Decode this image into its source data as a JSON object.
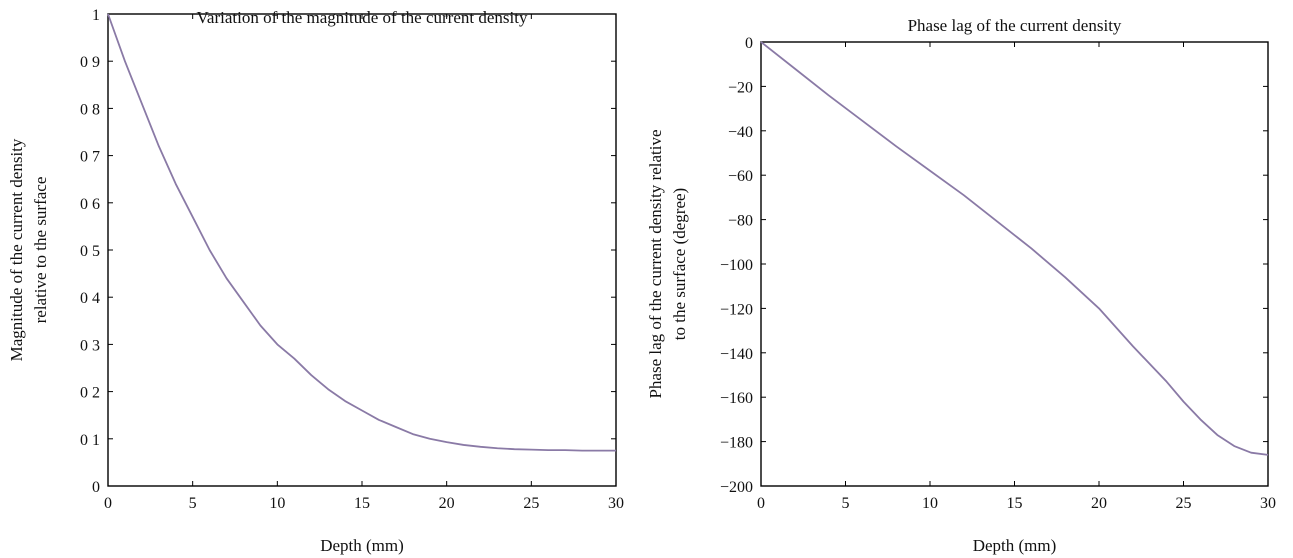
{
  "chart_data": [
    {
      "type": "line",
      "title": "Variation of the magnitude of the current density",
      "xlabel": "Depth (mm)",
      "ylabel": [
        "Magnitude of the current density",
        "relative to the surface"
      ],
      "xlim": [
        0,
        30
      ],
      "ylim": [
        0,
        1
      ],
      "xticks": [
        "0",
        "5",
        "10",
        "15",
        "20",
        "25",
        "30"
      ],
      "yticks": [
        "0",
        "0 1",
        "0 2",
        "0 3",
        "0 4",
        "0 5",
        "0 6",
        "0 7",
        "0 8",
        "0 9",
        "1"
      ],
      "grid": false,
      "line_color": "#8a7aa6",
      "series": [
        {
          "x": [
            0,
            1,
            2,
            3,
            4,
            5,
            6,
            7,
            8,
            9,
            10,
            11,
            12,
            13,
            14,
            15,
            16,
            17,
            18,
            19,
            20,
            21,
            22,
            23,
            24,
            25,
            26,
            27,
            28,
            29,
            30
          ],
          "y": [
            1.0,
            0.9,
            0.81,
            0.72,
            0.64,
            0.57,
            0.5,
            0.44,
            0.39,
            0.34,
            0.3,
            0.27,
            0.235,
            0.205,
            0.18,
            0.16,
            0.14,
            0.125,
            0.11,
            0.1,
            0.093,
            0.087,
            0.083,
            0.08,
            0.078,
            0.077,
            0.076,
            0.076,
            0.075,
            0.075,
            0.075
          ]
        }
      ]
    },
    {
      "type": "line",
      "title": "Phase lag of the current density",
      "xlabel": "Depth (mm)",
      "ylabel": [
        "Phase lag of the current density relative",
        "to the surface (degree)"
      ],
      "xlim": [
        0,
        30
      ],
      "ylim": [
        -200,
        0
      ],
      "xticks": [
        "0",
        "5",
        "10",
        "15",
        "20",
        "25",
        "30"
      ],
      "yticks": [
        "0",
        "−20",
        "−40",
        "−60",
        "−80",
        "−100",
        "−120",
        "−140",
        "−160",
        "−180",
        "−200"
      ],
      "grid": false,
      "line_color": "#8a7aa6",
      "series": [
        {
          "x": [
            0,
            2,
            4,
            6,
            8,
            10,
            12,
            14,
            16,
            18,
            20,
            22,
            23,
            24,
            25,
            26,
            27,
            28,
            29,
            30
          ],
          "y": [
            0,
            -12,
            -24,
            -35.5,
            -47,
            -58,
            -69,
            -81,
            -93,
            -106,
            -120,
            -137,
            -145,
            -153,
            -162,
            -170,
            -177,
            -182,
            -185,
            -186
          ]
        }
      ]
    }
  ]
}
